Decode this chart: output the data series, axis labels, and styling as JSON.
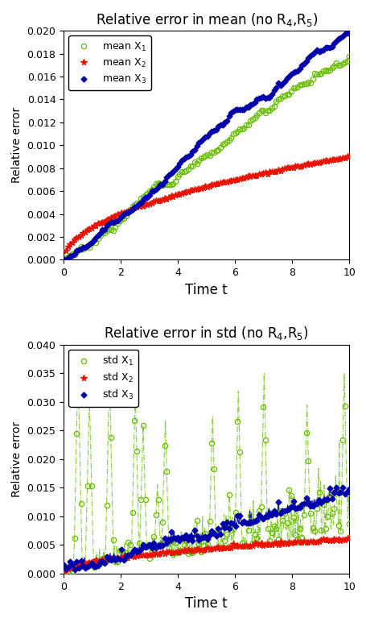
{
  "title1": "Relative error in mean (no R$_4$,R$_5$)",
  "title2": "Relative error in std (no R$_4$,R$_5$)",
  "xlabel": "Time t",
  "ylabel": "Relative error",
  "xlim": [
    0,
    10
  ],
  "ylim1": [
    0,
    0.02
  ],
  "ylim2": [
    0,
    0.04
  ],
  "yticks1": [
    0,
    0.002,
    0.004,
    0.006,
    0.008,
    0.01,
    0.012,
    0.014,
    0.016,
    0.018,
    0.02
  ],
  "yticks2": [
    0,
    0.005,
    0.01,
    0.015,
    0.02,
    0.025,
    0.03,
    0.035,
    0.04
  ],
  "xticks": [
    0,
    2,
    4,
    6,
    8,
    10
  ],
  "color_green": "#66BB00",
  "color_red": "#EE1100",
  "color_blue": "#0000AA",
  "n_points": 400,
  "seed": 7,
  "legend1": [
    "mean X$_1$",
    "mean X$_2$",
    "mean X$_3$"
  ],
  "legend2": [
    "std X$_1$",
    "std X$_2$",
    "std X$_3$"
  ],
  "bg_color": "#FFFFFF",
  "fig_color": "#FFFFFF",
  "figsize": [
    4.56,
    7.72
  ],
  "dpi": 100
}
